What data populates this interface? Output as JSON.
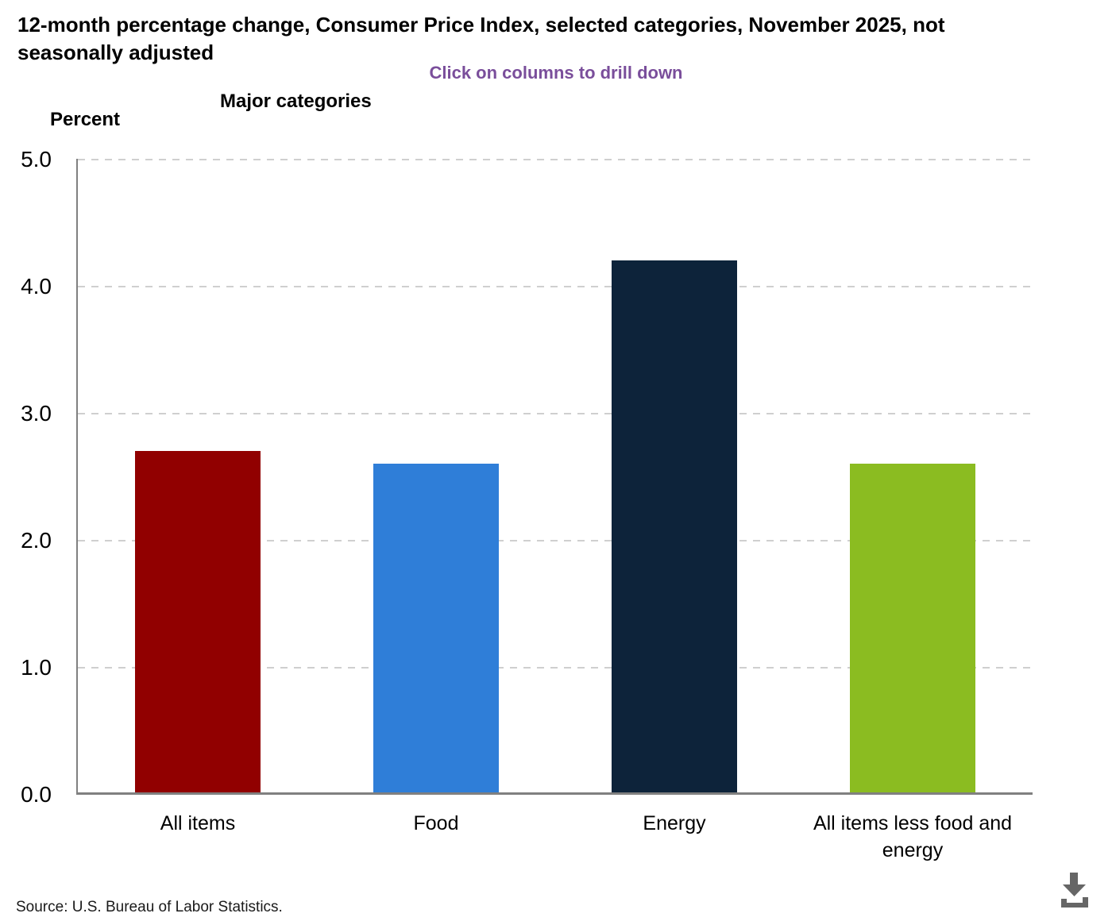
{
  "header": {
    "title": "12-month percentage change, Consumer Price Index, selected categories, November 2025, not seasonally adjusted",
    "subtitle": "Click on columns to drill down",
    "subtitle_color": "#7a4e9b"
  },
  "chart_data": {
    "type": "bar",
    "title": "Major categories",
    "ylabel": "Percent",
    "categories": [
      "All items",
      "Food",
      "Energy",
      "All items less food and energy"
    ],
    "values": [
      2.7,
      2.6,
      4.2,
      2.6
    ],
    "colors": [
      "#910000",
      "#2f7ed8",
      "#0d233a",
      "#8bbc21"
    ],
    "ylim": [
      0,
      5
    ],
    "yticks": [
      "5.0",
      "4.0",
      "3.0",
      "2.0",
      "1.0",
      "0.0"
    ],
    "grid": "horizontal dashed",
    "legend": "none",
    "interaction_hint": "columns are clickable to drill down"
  },
  "footer": {
    "source": "Source: U.S. Bureau of Labor Statistics.",
    "download_icon": "download-icon",
    "icon_color": "#666666"
  }
}
